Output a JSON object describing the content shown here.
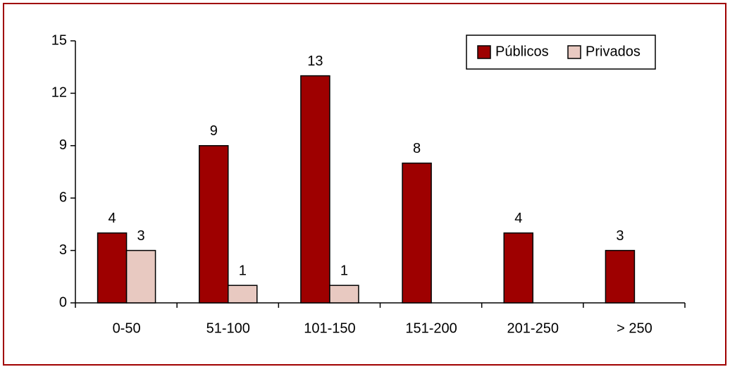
{
  "chart_data": {
    "type": "bar",
    "categories": [
      "0-50",
      "51-100",
      "101-150",
      "151-200",
      "201-250",
      "> 250"
    ],
    "series": [
      {
        "name": "Públicos",
        "color": "#9e0000",
        "values": [
          4,
          9,
          13,
          8,
          4,
          3
        ]
      },
      {
        "name": "Privados",
        "color": "#e8c9c1",
        "values": [
          3,
          1,
          1,
          null,
          null,
          null
        ]
      }
    ],
    "ylim": [
      0,
      15
    ],
    "yticks": [
      0,
      3,
      6,
      9,
      12,
      15
    ],
    "legend": "top-right",
    "grid": false
  }
}
